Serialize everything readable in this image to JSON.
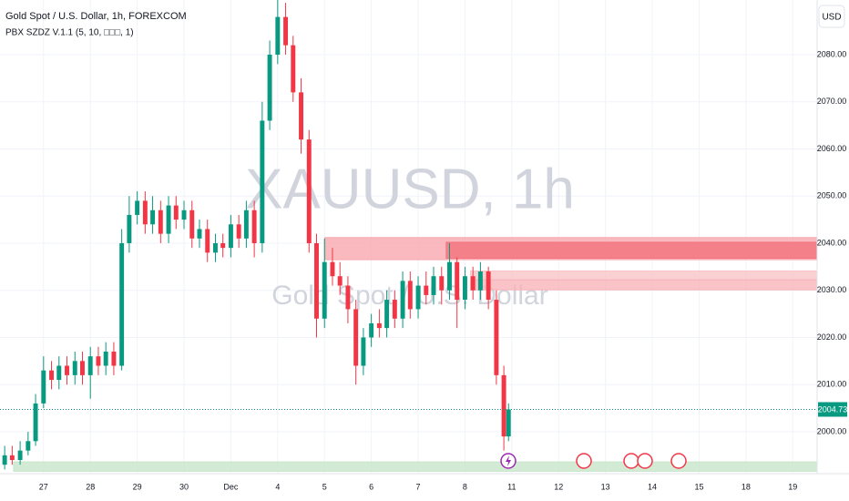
{
  "chart_data": {
    "type": "candlestick",
    "title": "Gold Spot / U.S. Dollar, 1h, FOREXCOM",
    "indicator": "PBX SZDZ V.1.1 (5, 10, □□□, 1)",
    "watermark": "XAUUSD, 1h",
    "watermark_subtitle": "Gold Spot / U.S. Dollar",
    "currency": "USD",
    "up_color": "#089981",
    "down_color": "#f23645",
    "x": [
      0.17,
      0.33,
      0.5,
      0.67,
      0.83,
      1,
      1.17,
      1.33,
      1.5,
      1.67,
      1.83,
      2,
      2.17,
      2.33,
      2.5,
      2.67,
      2.83,
      3,
      3.17,
      3.33,
      3.5,
      3.67,
      3.83,
      4,
      4.17,
      4.33,
      4.5,
      4.67,
      4.83,
      5,
      5.17,
      5.33,
      5.5,
      5.67,
      5.83,
      6,
      6.17,
      6.33,
      6.5,
      6.67,
      6.83,
      7,
      7.17,
      7.33,
      7.5,
      7.67,
      7.83,
      8,
      8.17,
      8.33,
      8.5,
      8.67,
      8.83,
      9,
      9.17,
      9.33,
      9.5,
      9.67,
      9.83,
      10,
      10.17,
      10.33,
      10.5,
      10.67,
      10.83,
      10.93
    ],
    "open": [
      1993,
      1995,
      1994,
      1996,
      1998,
      2006,
      2013,
      2011,
      2014,
      2012,
      2015,
      2012,
      2016,
      2014,
      2017,
      2014,
      2040,
      2046,
      2049,
      2044,
      2047,
      2042,
      2048,
      2045,
      2047,
      2041,
      2043,
      2038,
      2040,
      2039,
      2044,
      2041,
      2047,
      2040,
      2066,
      2080,
      2088,
      2082,
      2072,
      2062,
      2040,
      2024,
      2036,
      2033,
      2031,
      2026,
      2014,
      2020,
      2023,
      2022,
      2028,
      2024,
      2032,
      2026,
      2031,
      2029,
      2033,
      2030,
      2036,
      2028,
      2033,
      2030,
      2034,
      2028,
      2012,
      1999
    ],
    "high": [
      1997,
      1997,
      1998,
      2000,
      2008,
      2016,
      2015,
      2016,
      2016,
      2017,
      2017,
      2018,
      2018,
      2019,
      2019,
      2043,
      2050,
      2051,
      2051,
      2050,
      2049,
      2050,
      2050,
      2049,
      2049,
      2045,
      2045,
      2042,
      2042,
      2046,
      2046,
      2049,
      2049,
      2070,
      2083,
      2092,
      2091,
      2084,
      2075,
      2064,
      2042,
      2041,
      2039,
      2036,
      2033,
      2028,
      2022,
      2025,
      2026,
      2030,
      2030,
      2034,
      2034,
      2033,
      2034,
      2035,
      2035,
      2040,
      2037,
      2035,
      2035,
      2036,
      2035,
      2030,
      2014,
      2006
    ],
    "low": [
      1992,
      1993,
      1993,
      1995,
      1997,
      2005,
      2009,
      2009,
      2010,
      2010,
      2010,
      2007,
      2012,
      2012,
      2012,
      2013,
      2038,
      2044,
      2042,
      2042,
      2040,
      2040,
      2043,
      2043,
      2039,
      2039,
      2036,
      2036,
      2037,
      2037,
      2039,
      2039,
      2037,
      2038,
      2064,
      2078,
      2080,
      2070,
      2059,
      2038,
      2020,
      2022,
      2031,
      2029,
      2023,
      2010,
      2012,
      2018,
      2020,
      2020,
      2022,
      2022,
      2024,
      2024,
      2027,
      2027,
      2027,
      2028,
      2022,
      2026,
      2028,
      2028,
      2026,
      2010,
      1996,
      1998
    ],
    "close": [
      1995,
      1994,
      1996,
      1998,
      2006,
      2013,
      2011,
      2014,
      2012,
      2015,
      2012,
      2016,
      2014,
      2017,
      2014,
      2040,
      2046,
      2049,
      2044,
      2047,
      2042,
      2048,
      2045,
      2047,
      2041,
      2043,
      2038,
      2040,
      2039,
      2044,
      2041,
      2047,
      2040,
      2066,
      2080,
      2088,
      2082,
      2072,
      2062,
      2040,
      2024,
      2036,
      2033,
      2031,
      2026,
      2014,
      2020,
      2023,
      2022,
      2028,
      2024,
      2032,
      2026,
      2031,
      2029,
      2033,
      2030,
      2036,
      2028,
      2033,
      2030,
      2034,
      2028,
      2012,
      1999,
      2004.73
    ],
    "last_price": 2004.73,
    "zones": [
      {
        "x": 7.01,
        "low": 2036.5,
        "high": 2041.2,
        "color": "#f7a8ae"
      },
      {
        "x": 9.6,
        "low": 2036.8,
        "high": 2040.2,
        "color": "#f2737c"
      },
      {
        "x": 10.12,
        "low": 2032.4,
        "high": 2034.1,
        "color": "#f9c4c8"
      },
      {
        "x": 10.12,
        "low": 2030.1,
        "high": 2032.2,
        "color": "#f7b4b9"
      },
      {
        "x": 0.36,
        "low": 1991.6,
        "high": 1993.6,
        "color": "#c8e6c9"
      }
    ],
    "xlim": [
      0.07,
      17.52
    ],
    "xticks": [
      {
        "value": 1,
        "label": "27"
      },
      {
        "value": 2,
        "label": "28"
      },
      {
        "value": 3,
        "label": "29"
      },
      {
        "value": 4,
        "label": "30"
      },
      {
        "value": 5,
        "label": "Dec"
      },
      {
        "value": 6,
        "label": "4"
      },
      {
        "value": 7,
        "label": "5"
      },
      {
        "value": 8,
        "label": "6"
      },
      {
        "value": 9,
        "label": "7"
      },
      {
        "value": 10,
        "label": "8"
      },
      {
        "value": 11,
        "label": "11"
      },
      {
        "value": 12,
        "label": "12"
      },
      {
        "value": 13,
        "label": "13"
      },
      {
        "value": 14,
        "label": "14"
      },
      {
        "value": 15,
        "label": "15"
      },
      {
        "value": 16,
        "label": "18"
      },
      {
        "value": 17,
        "label": "19"
      }
    ],
    "ylim": [
      1991.1,
      2091.6
    ],
    "yticks": [
      {
        "value": 2000,
        "label": "2000.00"
      },
      {
        "value": 2010,
        "label": "2010.00"
      },
      {
        "value": 2020,
        "label": "2020.00"
      },
      {
        "value": 2030,
        "label": "2030.00"
      },
      {
        "value": 2040,
        "label": "2040.00"
      },
      {
        "value": 2050,
        "label": "2050.00"
      },
      {
        "value": 2060,
        "label": "2060.00"
      },
      {
        "value": 2070,
        "label": "2070.00"
      },
      {
        "value": 2080,
        "label": "2080.00"
      }
    ],
    "grid": true
  }
}
